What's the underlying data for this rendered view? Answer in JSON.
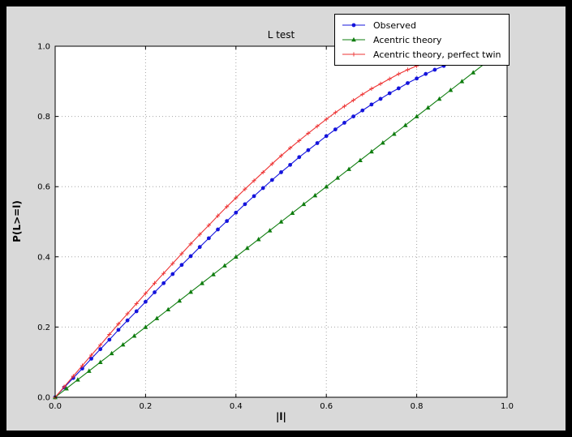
{
  "window": {
    "frame_color": "#000000",
    "figure_color": "#d9d9d9",
    "plot_background": "#ffffff"
  },
  "chart_data": {
    "type": "line",
    "title": "L test",
    "xlabel": "|l|",
    "ylabel": "P(L>=l)",
    "xlim": [
      0,
      1
    ],
    "ylim": [
      0,
      1
    ],
    "xticks": [
      0,
      0.2,
      0.4,
      0.6,
      0.8,
      1
    ],
    "xtick_labels": [
      "0.0",
      "0.2",
      "0.4",
      "0.6",
      "0.8",
      "1.0"
    ],
    "yticks": [
      0,
      0.2,
      0.4,
      0.6,
      0.8,
      1
    ],
    "ytick_labels": [
      "0.0",
      "0.2",
      "0.4",
      "0.6",
      "0.8",
      "1.0"
    ],
    "grid": "dotted",
    "grid_color": "#a6a6a6",
    "legend_position": "upper right",
    "series": [
      {
        "name": "Observed",
        "color": "#1414dc",
        "marker": "circle",
        "x": [
          0,
          0.02,
          0.04,
          0.06,
          0.08,
          0.1,
          0.12,
          0.14,
          0.16,
          0.18,
          0.2,
          0.22,
          0.24,
          0.26,
          0.28,
          0.3,
          0.32,
          0.34,
          0.36,
          0.38,
          0.4,
          0.42,
          0.44,
          0.46,
          0.48,
          0.5,
          0.52,
          0.54,
          0.56,
          0.58,
          0.6,
          0.62,
          0.64,
          0.66,
          0.68,
          0.7,
          0.72,
          0.74,
          0.76,
          0.78,
          0.8,
          0.82,
          0.84,
          0.86
        ],
        "y": [
          0,
          0.028,
          0.055,
          0.082,
          0.11,
          0.137,
          0.164,
          0.192,
          0.219,
          0.245,
          0.272,
          0.299,
          0.325,
          0.351,
          0.377,
          0.402,
          0.428,
          0.453,
          0.478,
          0.502,
          0.526,
          0.55,
          0.573,
          0.596,
          0.619,
          0.641,
          0.662,
          0.684,
          0.704,
          0.724,
          0.744,
          0.763,
          0.782,
          0.8,
          0.817,
          0.834,
          0.85,
          0.866,
          0.88,
          0.895,
          0.908,
          0.921,
          0.933,
          0.944
        ]
      },
      {
        "name": "Acentric theory",
        "color": "#0f7d0f",
        "marker": "triangle",
        "x": [
          0,
          0.025,
          0.05,
          0.075,
          0.1,
          0.125,
          0.15,
          0.175,
          0.2,
          0.225,
          0.25,
          0.275,
          0.3,
          0.325,
          0.35,
          0.375,
          0.4,
          0.425,
          0.45,
          0.475,
          0.5,
          0.525,
          0.55,
          0.575,
          0.6,
          0.625,
          0.65,
          0.675,
          0.7,
          0.725,
          0.75,
          0.775,
          0.8,
          0.825,
          0.85,
          0.875,
          0.9,
          0.925,
          0.95,
          0.975
        ],
        "y": [
          0,
          0.025,
          0.05,
          0.075,
          0.1,
          0.125,
          0.15,
          0.175,
          0.2,
          0.225,
          0.25,
          0.275,
          0.3,
          0.325,
          0.35,
          0.375,
          0.4,
          0.425,
          0.45,
          0.475,
          0.5,
          0.525,
          0.55,
          0.575,
          0.6,
          0.625,
          0.65,
          0.675,
          0.7,
          0.725,
          0.75,
          0.775,
          0.8,
          0.825,
          0.85,
          0.875,
          0.9,
          0.925,
          0.95,
          0.975
        ]
      },
      {
        "name": "Acentric theory, perfect twin",
        "color": "#ee3333",
        "marker": "plus",
        "x": [
          0,
          0.02,
          0.04,
          0.06,
          0.08,
          0.1,
          0.12,
          0.14,
          0.16,
          0.18,
          0.2,
          0.22,
          0.24,
          0.26,
          0.28,
          0.3,
          0.32,
          0.34,
          0.36,
          0.38,
          0.4,
          0.42,
          0.44,
          0.46,
          0.48,
          0.5,
          0.52,
          0.54,
          0.56,
          0.58,
          0.6,
          0.62,
          0.64,
          0.66,
          0.68,
          0.7,
          0.72,
          0.74,
          0.76,
          0.78,
          0.8,
          0.82,
          0.84,
          0.86,
          0.88,
          0.9,
          0.92,
          0.94,
          0.96,
          0.98,
          1.0
        ],
        "y": [
          0,
          0.03,
          0.06,
          0.09,
          0.12,
          0.149,
          0.179,
          0.209,
          0.238,
          0.267,
          0.296,
          0.325,
          0.353,
          0.381,
          0.409,
          0.437,
          0.464,
          0.49,
          0.517,
          0.543,
          0.568,
          0.593,
          0.617,
          0.641,
          0.665,
          0.688,
          0.71,
          0.731,
          0.752,
          0.772,
          0.792,
          0.811,
          0.829,
          0.846,
          0.863,
          0.879,
          0.893,
          0.907,
          0.921,
          0.933,
          0.944,
          0.954,
          0.964,
          0.972,
          0.979,
          0.986,
          0.991,
          0.995,
          0.998,
          0.999,
          1.0
        ]
      }
    ]
  }
}
